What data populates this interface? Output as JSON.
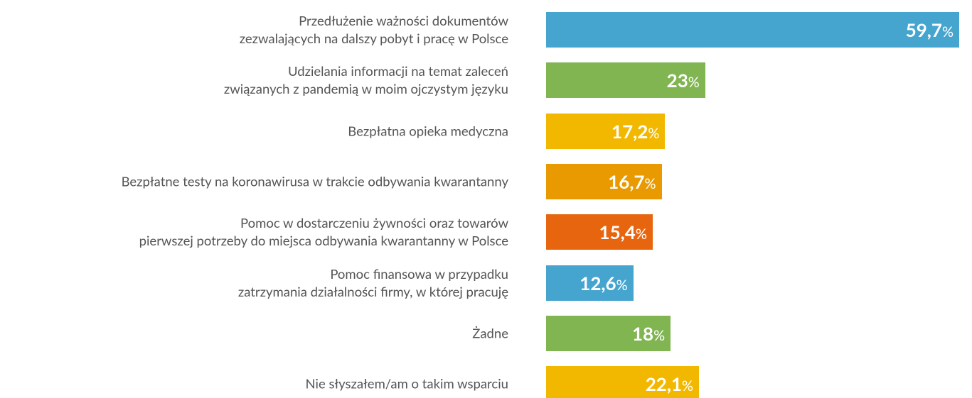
{
  "chart_data": {
    "type": "bar",
    "orientation": "horizontal",
    "categories": [
      "Przedłużenie ważności dokumentów\nzezwalających na dalszy pobyt i pracę w Polsce",
      "Udzielania informacji na temat zaleceń\nzwiązanych z pandemią w moim ojczystym języku",
      "Bezpłatna opieka medyczna",
      "Bezpłatne testy na koronawirusa w trakcie odbywania kwarantanny",
      "Pomoc w dostarczeniu żywności oraz towarów\npierwszej potrzeby do miejsca odbywania kwarantanny w Polsce",
      "Pomoc finansowa w przypadku\nzatrzymania działalności firmy, w której pracuję",
      "Żadne",
      "Nie słyszałem/am o takim wsparciu"
    ],
    "values": [
      59.7,
      23,
      17.2,
      16.7,
      15.4,
      12.6,
      18,
      22.1
    ],
    "value_labels": [
      "59,7%",
      "23%",
      "17,2%",
      "16,7%",
      "15,4%",
      "12,6%",
      "18%",
      "22,1%"
    ],
    "colors": [
      "#45a5cf",
      "#80b552",
      "#f2b800",
      "#e99a00",
      "#e8650f",
      "#45a5cf",
      "#80b552",
      "#f2b800"
    ]
  }
}
